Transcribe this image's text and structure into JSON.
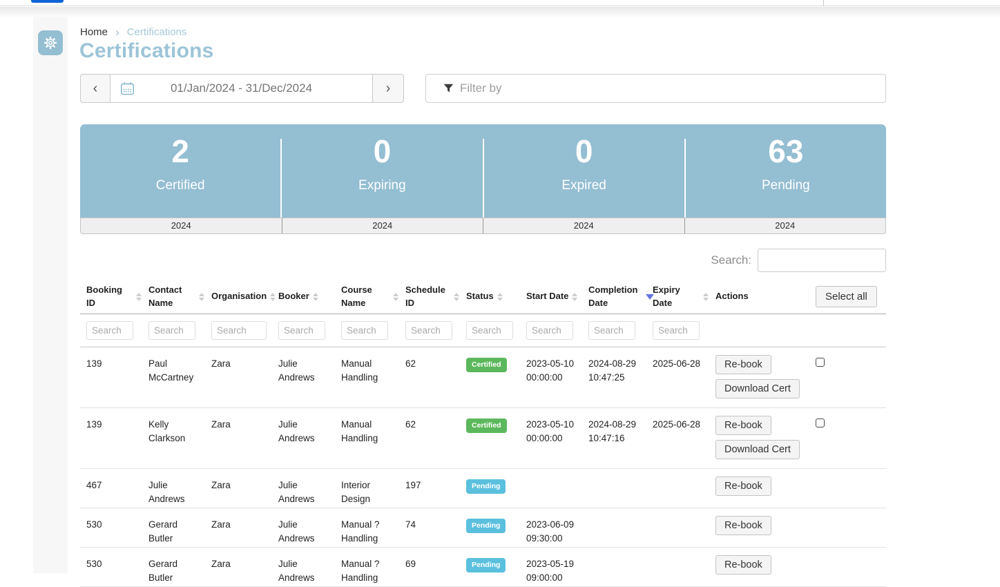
{
  "colors": {
    "accent_pill": "#0e62d8",
    "stats_bg": "#94bed2",
    "title": "#9cc4d8",
    "link": "#a6c9da",
    "certified": "#5cb85c",
    "pending": "#5bc0de",
    "sort_active": "#6673dd"
  },
  "icons": {
    "sidebar_gear": "gear-icon",
    "datepicker_calendar": "calendar-icon",
    "filter_funnel": "filter-funnel-icon",
    "breadcrumb_separator": "›"
  },
  "breadcrumb": {
    "home": "Home",
    "current": "Certifications"
  },
  "page": {
    "title": "Certifications"
  },
  "datepicker": {
    "prev": "‹",
    "next": "›",
    "value": "01/Jan/2024 - 31/Dec/2024"
  },
  "filter": {
    "placeholder": "Filter by"
  },
  "stats": {
    "items": [
      {
        "value": "2",
        "label": "Certified",
        "year": "2024"
      },
      {
        "value": "0",
        "label": "Expiring",
        "year": "2024"
      },
      {
        "value": "0",
        "label": "Expired",
        "year": "2024"
      },
      {
        "value": "63",
        "label": "Pending",
        "year": "2024"
      }
    ]
  },
  "table": {
    "search_label": "Search:",
    "search_value": "",
    "column_search_placeholder": "Search",
    "select_all_label": "Select all",
    "columns": [
      {
        "label": "Booking ID",
        "sortable": true,
        "searchable": true
      },
      {
        "label": "Contact Name",
        "sortable": true,
        "searchable": true
      },
      {
        "label": "Organisation",
        "sortable": true,
        "searchable": true
      },
      {
        "label": "Booker",
        "sortable": true,
        "searchable": true
      },
      {
        "label": "Course Name",
        "sortable": true,
        "searchable": true
      },
      {
        "label": "Schedule ID",
        "sortable": true,
        "searchable": true
      },
      {
        "label": "Status",
        "sortable": true,
        "searchable": true
      },
      {
        "label": "Start Date",
        "sortable": true,
        "searchable": true
      },
      {
        "label": "Completion Date",
        "sortable": true,
        "sorted": "desc",
        "searchable": true
      },
      {
        "label": "Expiry Date",
        "sortable": true,
        "searchable": true
      },
      {
        "label": "Actions",
        "sortable": false,
        "searchable": false
      }
    ],
    "rows": [
      {
        "booking_id": "139",
        "contact_name": "Paul McCartney",
        "organisation": "Zara",
        "booker": "Julie Andrews",
        "course_name": "Manual Handling",
        "schedule_id": "62",
        "status": "Certified",
        "start_date": "2023-05-10 00:00:00",
        "completion_date": "2024-08-29 10:47:25",
        "expiry_date": "2025-06-28",
        "actions": [
          "Re-book",
          "Download Cert"
        ],
        "selectable": true
      },
      {
        "booking_id": "139",
        "contact_name": "Kelly Clarkson",
        "organisation": "Zara",
        "booker": "Julie Andrews",
        "course_name": "Manual Handling",
        "schedule_id": "62",
        "status": "Certified",
        "start_date": "2023-05-10 00:00:00",
        "completion_date": "2024-08-29 10:47:16",
        "expiry_date": "2025-06-28",
        "actions": [
          "Re-book",
          "Download Cert"
        ],
        "selectable": true
      },
      {
        "booking_id": "467",
        "contact_name": "Julie Andrews",
        "organisation": "Zara",
        "booker": "Julie Andrews",
        "course_name": "Interior Design",
        "schedule_id": "197",
        "status": "Pending",
        "start_date": "",
        "completion_date": "",
        "expiry_date": "",
        "actions": [
          "Re-book"
        ],
        "selectable": false
      },
      {
        "booking_id": "530",
        "contact_name": "Gerard Butler",
        "organisation": "Zara",
        "booker": "Julie Andrews",
        "course_name": "Manual ? Handling",
        "schedule_id": "74",
        "status": "Pending",
        "start_date": "2023-06-09 09:30:00",
        "completion_date": "",
        "expiry_date": "",
        "actions": [
          "Re-book"
        ],
        "selectable": false
      },
      {
        "booking_id": "530",
        "contact_name": "Gerard Butler",
        "organisation": "Zara",
        "booker": "Julie Andrews",
        "course_name": "Manual ? Handling",
        "schedule_id": "69",
        "status": "Pending",
        "start_date": "2023-05-19 09:00:00",
        "completion_date": "",
        "expiry_date": "",
        "actions": [
          "Re-book"
        ],
        "selectable": false
      }
    ]
  }
}
